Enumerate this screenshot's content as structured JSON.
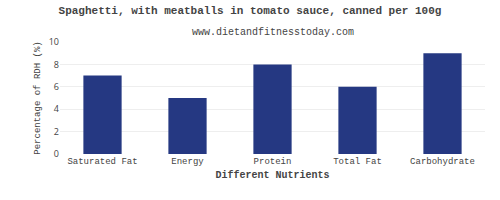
{
  "chart_data": {
    "type": "bar",
    "title": "Spaghetti, with meatballs in tomato sauce, canned per 100g",
    "subtitle": "www.dietandfitnesstoday.com",
    "categories": [
      "Saturated Fat",
      "Energy",
      "Protein",
      "Total Fat",
      "Carbohydrate"
    ],
    "values": [
      7,
      5,
      8,
      6,
      9
    ],
    "color": "#253882",
    "xlabel": "Different Nutrients",
    "ylabel": "Percentage of RDH (%)",
    "ylim": [
      0,
      10
    ],
    "yticks": [
      0,
      2,
      4,
      6,
      8,
      10
    ],
    "grid": true
  }
}
